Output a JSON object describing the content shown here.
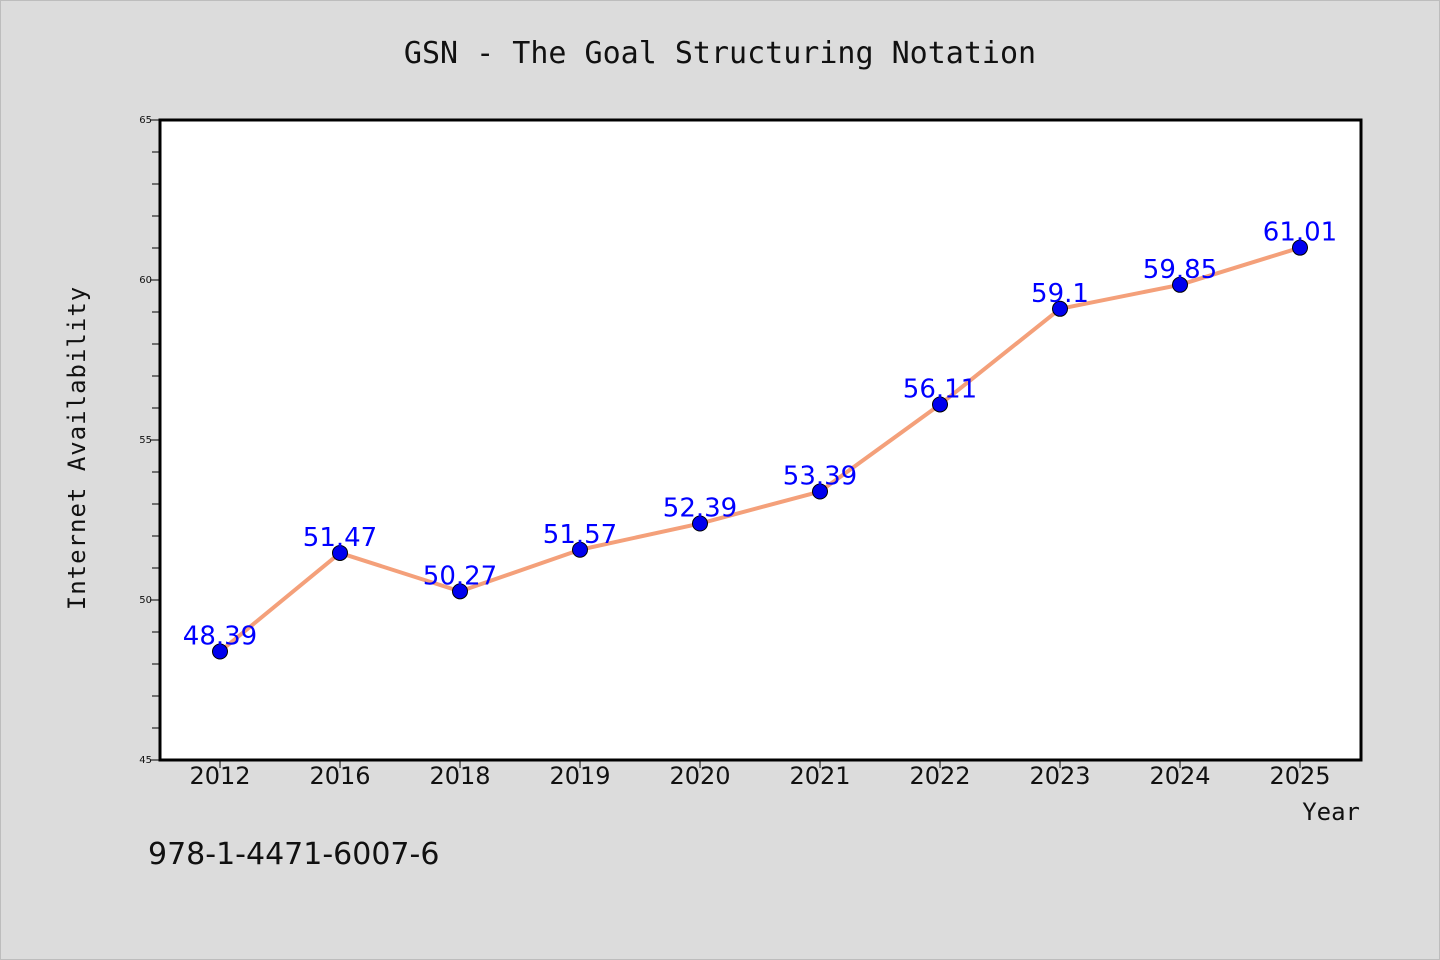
{
  "chart_data": {
    "type": "line",
    "title": "GSN - The Goal Structuring Notation",
    "xlabel": "Year",
    "ylabel": "Internet Availability",
    "categories": [
      "2012",
      "2016",
      "2018",
      "2019",
      "2020",
      "2021",
      "2022",
      "2023",
      "2024",
      "2025"
    ],
    "series": [
      {
        "values": [
          48.39,
          51.47,
          50.27,
          51.57,
          52.39,
          53.39,
          56.11,
          59.1,
          59.85,
          61.01
        ],
        "labels": [
          "48.39",
          "51.47",
          "50.27",
          "51.57",
          "52.39",
          "53.39",
          "56.11",
          "59.1",
          "59.85",
          "61.01"
        ],
        "line_color": "#f4a07a",
        "marker_color": "#0000ee"
      }
    ],
    "ylim": [
      45,
      65
    ],
    "yticks": [
      "45",
      "50",
      "55",
      "60",
      "65"
    ],
    "grid": false,
    "label_color": "#0000ff"
  },
  "footer_text": "978-1-4471-6007-6",
  "colors": {
    "background": "#dcdcdc",
    "plot_background": "#ffffff"
  }
}
